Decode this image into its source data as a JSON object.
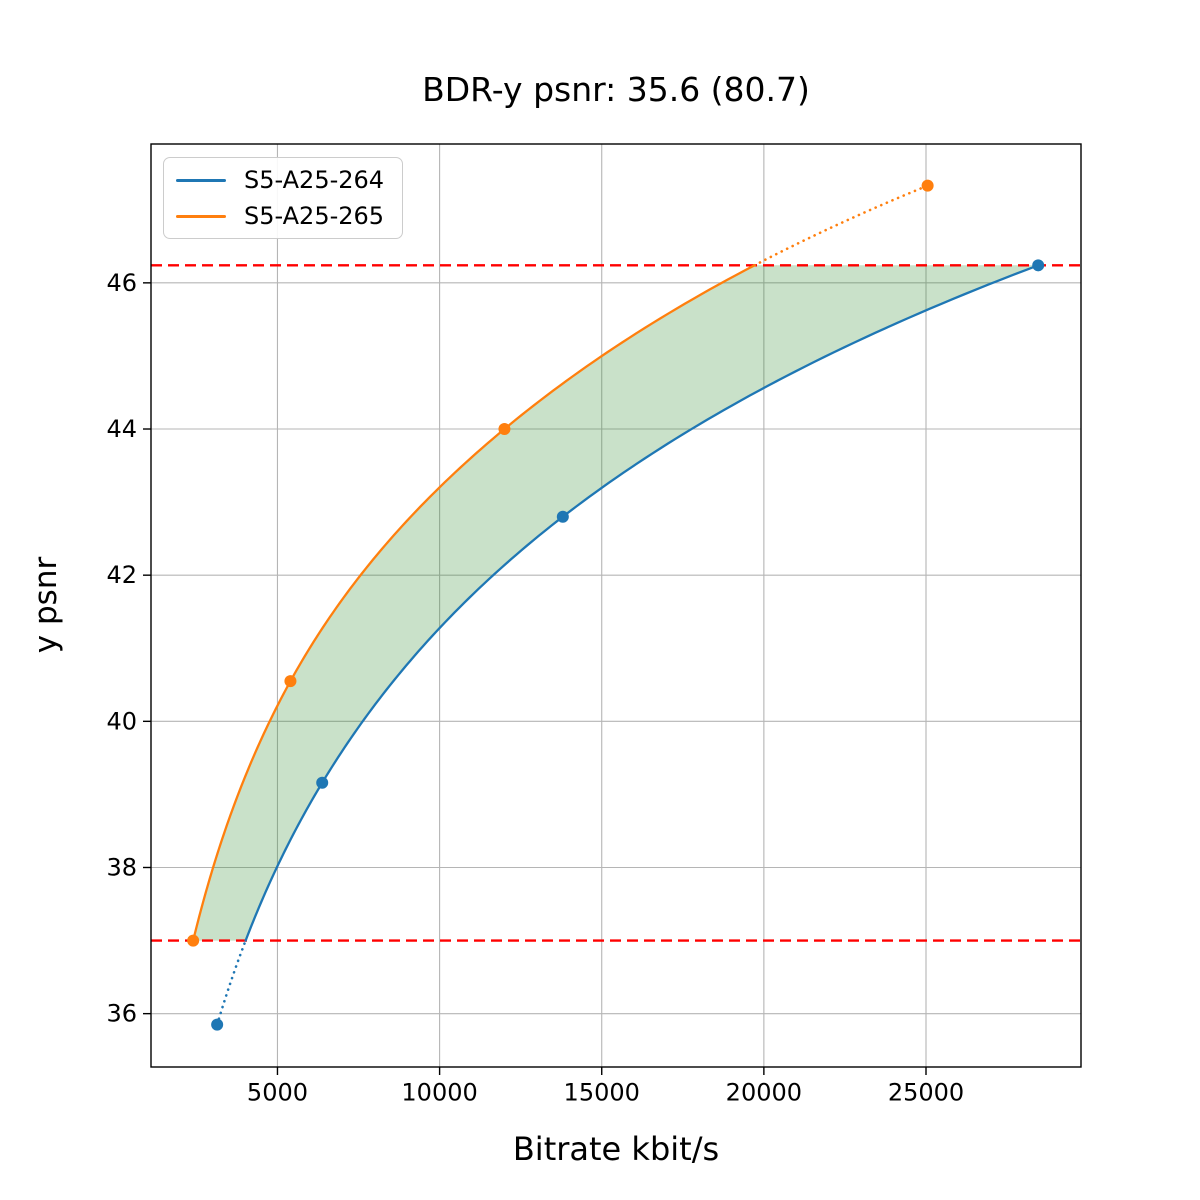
{
  "chart_data": {
    "type": "line",
    "title": "BDR-y psnr: 35.6 (80.7)",
    "xlabel": "Bitrate kbit/s",
    "ylabel": "y psnr",
    "xlim": [
      1100,
      29780
    ],
    "ylim": [
      35.27,
      47.9
    ],
    "x_ticks": [
      5000,
      10000,
      15000,
      20000,
      25000
    ],
    "y_ticks": [
      36,
      38,
      40,
      42,
      44,
      46
    ],
    "grid": true,
    "grid_color": "#b5b5b5",
    "legend_position": "upper-left",
    "series": [
      {
        "name": "S5-A25-264",
        "color": "#1f77b4",
        "points": [
          [
            3140,
            35.85
          ],
          [
            6380,
            39.16
          ],
          [
            13800,
            42.8
          ],
          [
            28460,
            46.24
          ]
        ]
      },
      {
        "name": "S5-A25-265",
        "color": "#ff7f0e",
        "points": [
          [
            2400,
            37.0
          ],
          [
            5400,
            40.55
          ],
          [
            12000,
            44.0
          ],
          [
            25050,
            47.33
          ]
        ]
      }
    ],
    "overlap_psnr_range": [
      37.0,
      46.24
    ],
    "bound_lines": {
      "color": "#ff0000",
      "style": "dashed",
      "values": [
        37.0,
        46.24
      ]
    },
    "fill_between": {
      "color": "#2e8b2e",
      "opacity": 0.26
    }
  }
}
